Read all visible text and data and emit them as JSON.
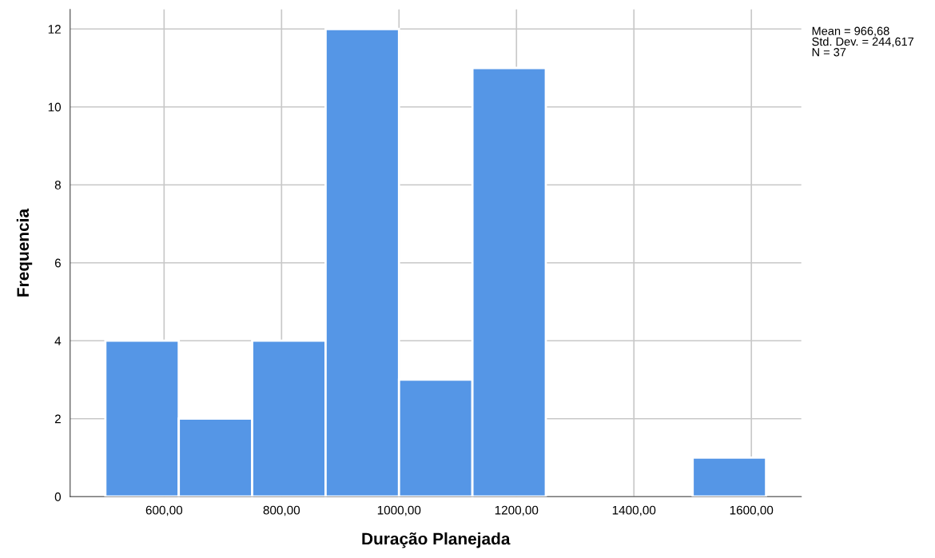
{
  "chart_data": {
    "type": "histogram",
    "xlabel": "Duração Planejada",
    "ylabel": "Frequencia",
    "bins": [
      500,
      625,
      750,
      875,
      1000,
      1125,
      1250,
      1375,
      1500,
      1625
    ],
    "values": [
      4,
      2,
      4,
      12,
      3,
      11,
      0,
      0,
      1
    ],
    "color": "#5596e6",
    "xlim": [
      440,
      1685
    ],
    "ylim": [
      0,
      12.5
    ],
    "xticks": [
      {
        "value": 600,
        "label": "600,00"
      },
      {
        "value": 800,
        "label": "800,00"
      },
      {
        "value": 1000,
        "label": "1000,00"
      },
      {
        "value": 1200,
        "label": "1200,00"
      },
      {
        "value": 1400,
        "label": "1400,00"
      },
      {
        "value": 1600,
        "label": "1600,00"
      }
    ],
    "yticks": [
      0,
      2,
      4,
      6,
      8,
      10,
      12
    ],
    "grid": true,
    "annotations": [
      "Mean = 966,68",
      "Std. Dev. = 244,617",
      "N = 37"
    ]
  }
}
